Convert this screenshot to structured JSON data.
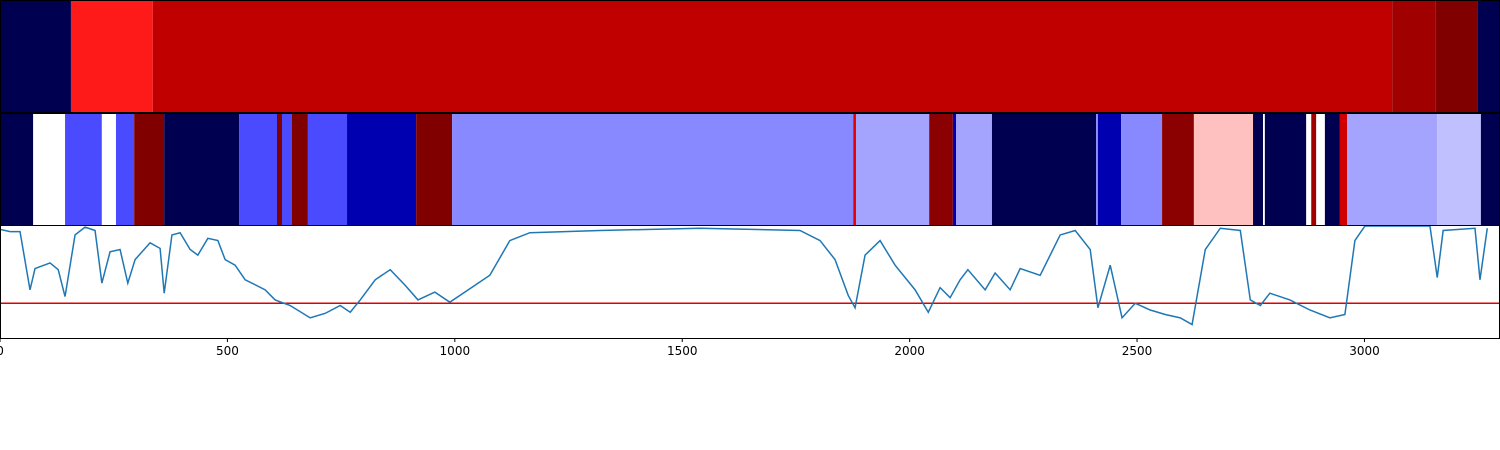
{
  "chart_data": [
    {
      "type": "segments",
      "xlim": [
        0,
        3298
      ],
      "boundaries": [
        0,
        156,
        336,
        3061,
        3157,
        3248,
        3298
      ],
      "colors": [
        "#000050",
        "#ff1a1a",
        "#c00000",
        "#a00000",
        "#800000",
        "#000050"
      ]
    },
    {
      "type": "segments",
      "xlim": [
        0,
        3298
      ],
      "boundaries": [
        0,
        73,
        143,
        224,
        255,
        295,
        361,
        526,
        609,
        620,
        642,
        677,
        763,
        915,
        994,
        1876,
        1882,
        2043,
        2095,
        2102,
        2181,
        2410,
        2414,
        2465,
        2555,
        2625,
        2755,
        2777,
        2781,
        2872,
        2883,
        2894,
        2913,
        2946,
        2962,
        3160,
        3256,
        3298
      ],
      "colors": [
        "#000050",
        "#ffffff",
        "#4a4aff",
        "#ffffff",
        "#4a4aff",
        "#800000",
        "#000050",
        "#4a4aff",
        "#800000",
        "#4a4aff",
        "#800000",
        "#4a4aff",
        "#0000b0",
        "#800000",
        "#8888ff",
        "#e00000",
        "#a4a4ff",
        "#8b0000",
        "#0000b0",
        "#a4a4ff",
        "#000050",
        "#8888ff",
        "#0000b0",
        "#8888ff",
        "#8b0000",
        "#ffc0c0",
        "#000050",
        "#ffffff",
        "#000050",
        "#ffffff",
        "#a00000",
        "#ffffff",
        "#000050",
        "#d00000",
        "#a4a4ff",
        "#c0c0ff",
        "#000050"
      ]
    },
    {
      "type": "line",
      "xlim": [
        0,
        3298
      ],
      "ylim": [
        0,
        1
      ],
      "xticks": [
        0,
        500,
        1000,
        1500,
        2000,
        2500,
        3000
      ],
      "color": "#1f77b4",
      "hline": 0.31,
      "hline_color": "#e00000",
      "x": [
        0,
        22,
        44,
        66,
        77,
        110,
        128,
        143,
        165,
        187,
        209,
        224,
        242,
        264,
        281,
        297,
        330,
        352,
        361,
        378,
        396,
        418,
        435,
        457,
        479,
        495,
        517,
        539,
        583,
        605,
        638,
        682,
        715,
        748,
        770,
        792,
        825,
        858,
        891,
        919,
        956,
        989,
        1022,
        1077,
        1121,
        1165,
        1319,
        1539,
        1759,
        1803,
        1836,
        1865,
        1880,
        1902,
        1935,
        1968,
        2012,
        2041,
        2067,
        2089,
        2111,
        2128,
        2166,
        2188,
        2221,
        2243,
        2287,
        2331,
        2364,
        2397,
        2414,
        2441,
        2467,
        2496,
        2529,
        2562,
        2595,
        2621,
        2650,
        2683,
        2727,
        2749,
        2771,
        2792,
        2836,
        2880,
        2924,
        2957,
        2979,
        3001,
        3144,
        3160,
        3173,
        3243,
        3254,
        3270
      ],
      "values": [
        0.97,
        0.95,
        0.95,
        0.43,
        0.62,
        0.67,
        0.61,
        0.37,
        0.92,
        0.99,
        0.96,
        0.49,
        0.77,
        0.79,
        0.49,
        0.7,
        0.85,
        0.8,
        0.4,
        0.92,
        0.94,
        0.79,
        0.74,
        0.89,
        0.87,
        0.7,
        0.65,
        0.52,
        0.43,
        0.34,
        0.29,
        0.18,
        0.22,
        0.29,
        0.23,
        0.34,
        0.52,
        0.61,
        0.47,
        0.34,
        0.41,
        0.32,
        0.41,
        0.56,
        0.87,
        0.94,
        0.96,
        0.98,
        0.96,
        0.87,
        0.7,
        0.38,
        0.27,
        0.74,
        0.87,
        0.65,
        0.43,
        0.23,
        0.45,
        0.36,
        0.52,
        0.61,
        0.43,
        0.58,
        0.43,
        0.62,
        0.56,
        0.92,
        0.96,
        0.79,
        0.27,
        0.65,
        0.18,
        0.31,
        0.25,
        0.21,
        0.18,
        0.12,
        0.79,
        0.98,
        0.96,
        0.34,
        0.29,
        0.4,
        0.34,
        0.25,
        0.18,
        0.21,
        0.87,
        1.0,
        1.0,
        0.54,
        0.96,
        0.98,
        0.52,
        0.98
      ]
    }
  ]
}
